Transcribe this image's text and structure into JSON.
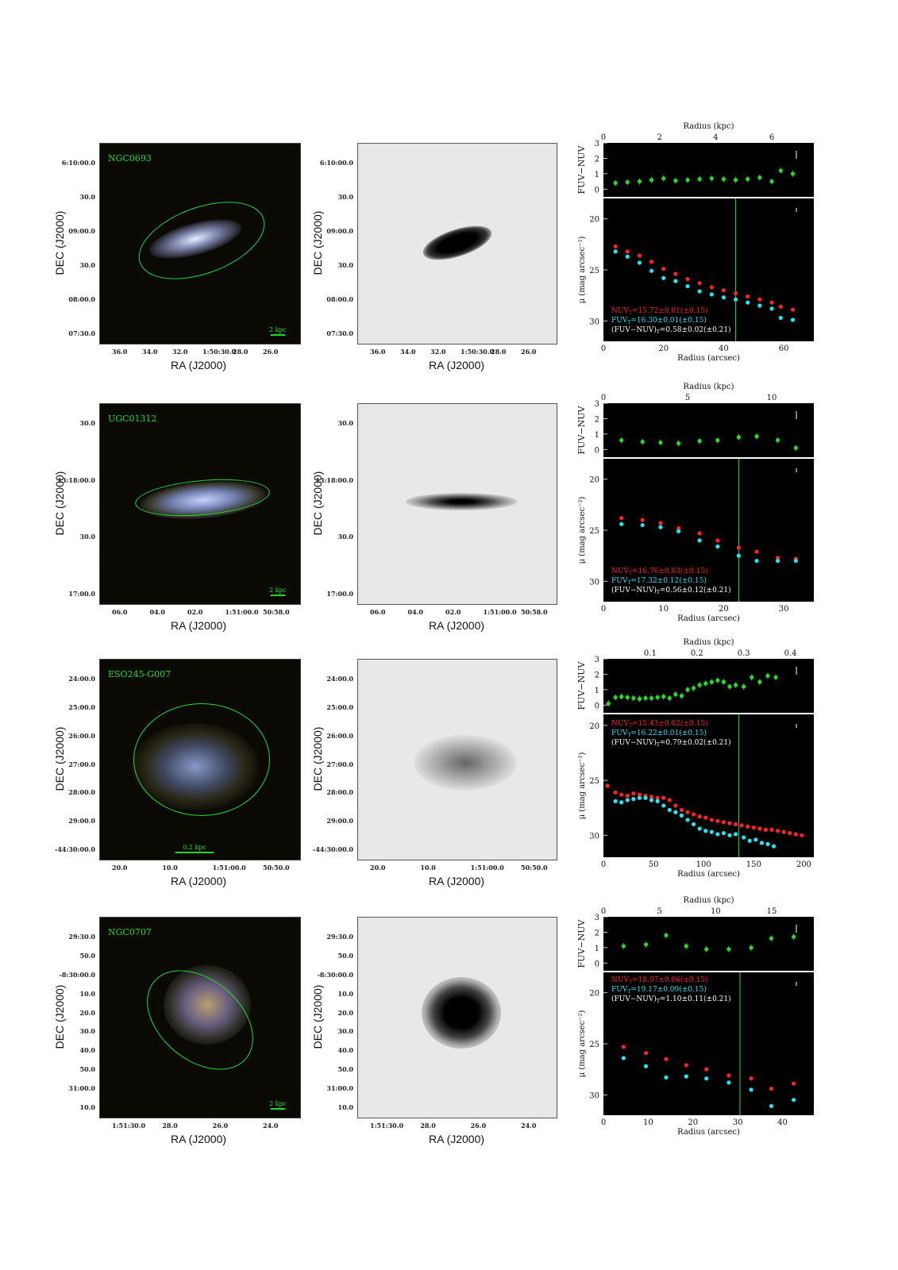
{
  "colors": {
    "ellipse": "#22dd33",
    "nuv": "#ff2222",
    "fuv": "#22e5f5",
    "color_pts": "#22dd22",
    "label_green": "#22dd22",
    "white": "#ffffff"
  },
  "common": {
    "ra_label": "RA (J2000)",
    "dec_label": "DEC (J2000)",
    "radius_kpc_label": "Radius (kpc)",
    "radius_arcsec_label": "Radius (arcsec)",
    "fuvnuv_label": "FUV−NUV",
    "mu_label": "μ (mag arcsec⁻²)"
  },
  "galaxies": [
    {
      "name": "NGC0693",
      "scalebar": "2 kpc",
      "dec_ticks": [
        "6:10:00.0",
        "30.0",
        "09:00.0",
        "30.0",
        "08:00.0",
        "07:30.0"
      ],
      "ra_ticks": [
        "36.0",
        "34.0",
        "32.0",
        "1:50:30.0",
        "28.0",
        "26.0"
      ],
      "mag_lines": {
        "nuv": "NUV",
        "nuv_val": "=15.72±0.01(±0.15)",
        "fuv": "FUV",
        "fuv_val": "=16.30±0.01(±0.15)",
        "col": "(FUV−NUV)",
        "col_val": "=0.58±0.02(±0.21)"
      },
      "chart_data": {
        "type": "scatter",
        "xlim": [
          0,
          70
        ],
        "kpc_ticks": [
          "0",
          "2",
          "4",
          "6"
        ],
        "x_ticks": [
          "0",
          "20",
          "40",
          "60"
        ],
        "mu_ylim": [
          32,
          18
        ],
        "mu_ticks": [
          "20",
          "25",
          "30"
        ],
        "color_ylim": [
          -0.5,
          3
        ],
        "color_ticks": [
          "0",
          "1",
          "2",
          "3"
        ],
        "vline": 44,
        "series": [
          {
            "name": "FUV−NUV",
            "x": [
              4,
              8,
              12,
              16,
              20,
              24,
              28,
              32,
              36,
              40,
              44,
              48,
              52,
              56,
              59,
              63
            ],
            "y": [
              0.4,
              0.45,
              0.5,
              0.6,
              0.7,
              0.55,
              0.6,
              0.65,
              0.7,
              0.65,
              0.6,
              0.65,
              0.75,
              0.5,
              1.2,
              1.0
            ]
          },
          {
            "name": "NUV",
            "x": [
              4,
              8,
              12,
              16,
              20,
              24,
              28,
              32,
              36,
              40,
              44,
              48,
              52,
              56,
              59,
              63
            ],
            "y": [
              22.7,
              23.2,
              23.6,
              24.2,
              24.9,
              25.4,
              25.9,
              26.3,
              26.7,
              27.0,
              27.3,
              27.6,
              27.9,
              28.2,
              28.6,
              28.9
            ]
          },
          {
            "name": "FUV",
            "x": [
              4,
              8,
              12,
              16,
              20,
              24,
              28,
              32,
              36,
              40,
              44,
              48,
              52,
              56,
              59,
              63
            ],
            "y": [
              23.2,
              23.7,
              24.3,
              25.1,
              25.8,
              26.1,
              26.6,
              27.1,
              27.4,
              27.7,
              27.9,
              28.2,
              28.5,
              28.8,
              29.7,
              29.9
            ]
          }
        ]
      }
    },
    {
      "name": "UGC01312",
      "scalebar": "2 kpc",
      "dec_ticks": [
        "30.0",
        "13:18:00.0",
        "30.0",
        "17:00.0"
      ],
      "ra_ticks": [
        "06.0",
        "04.0",
        "02.0",
        "1:51:00.0",
        "50:58.0"
      ],
      "mag_lines": {
        "nuv": "NUV",
        "nuv_val": "=16.76±0.03(±0.15)",
        "fuv": "FUV",
        "fuv_val": "=17.32±0.12(±0.15)",
        "col": "(FUV−NUV)",
        "col_val": "=0.56±0.12(±0.21)"
      },
      "chart_data": {
        "type": "scatter",
        "xlim": [
          0,
          35
        ],
        "kpc_ticks": [
          "0",
          "5",
          "10"
        ],
        "x_ticks": [
          "0",
          "10",
          "20",
          "30"
        ],
        "mu_ylim": [
          32,
          18
        ],
        "mu_ticks": [
          "20",
          "25",
          "30"
        ],
        "color_ylim": [
          -0.5,
          3
        ],
        "color_ticks": [
          "0",
          "1",
          "2",
          "3"
        ],
        "vline": 22.5,
        "series": [
          {
            "name": "FUV−NUV",
            "x": [
              3,
              6.5,
              9.5,
              12.5,
              16,
              19,
              22.5,
              25.5,
              29,
              32
            ],
            "y": [
              0.6,
              0.5,
              0.45,
              0.4,
              0.55,
              0.6,
              0.8,
              0.85,
              0.6,
              0.1
            ]
          },
          {
            "name": "NUV",
            "x": [
              3,
              6.5,
              9.5,
              12.5,
              16,
              19,
              22.5,
              25.5,
              29,
              32
            ],
            "y": [
              23.8,
              24.0,
              24.3,
              24.8,
              25.3,
              26.0,
              26.7,
              27.1,
              27.7,
              27.8
            ]
          },
          {
            "name": "FUV",
            "x": [
              3,
              6.5,
              9.5,
              12.5,
              16,
              19,
              22.5,
              25.5,
              29,
              32
            ],
            "y": [
              24.4,
              24.5,
              24.7,
              25.1,
              26.0,
              26.6,
              27.5,
              28.0,
              28.0,
              28.0
            ]
          }
        ]
      }
    },
    {
      "name": "ESO245-G007",
      "scalebar": "0.2 kpc",
      "dec_ticks": [
        "24:00.0",
        "25:00.0",
        "26:00.0",
        "27:00.0",
        "28:00.0",
        "29:00.0",
        "-44:30:00.0"
      ],
      "ra_ticks": [
        "20.0",
        "10.0",
        "1:51:00.0",
        "50:50.0"
      ],
      "mag_lines": {
        "nuv": "NUV",
        "nuv_val": "=15.43±0.02(±0.15)",
        "fuv": "FUV",
        "fuv_val": "=16.22±0.01(±0.15)",
        "col": "(FUV−NUV)",
        "col_val": "=0.79±0.02(±0.21)"
      },
      "chart_data": {
        "type": "scatter",
        "xlim": [
          0,
          210
        ],
        "kpc_ticks": [
          "0.1",
          "0.2",
          "0.3",
          "0.4"
        ],
        "x_ticks": [
          "0",
          "50",
          "100",
          "150",
          "200"
        ],
        "mu_ylim": [
          32,
          19
        ],
        "mu_ticks": [
          "20",
          "25",
          "30"
        ],
        "color_ylim": [
          -0.5,
          3
        ],
        "color_ticks": [
          "0",
          "1",
          "2",
          "3"
        ],
        "vline": 135,
        "series": [
          {
            "name": "FUV−NUV",
            "x": [
              5,
              12,
              18,
              24,
              30,
              36,
              42,
              48,
              54,
              60,
              66,
              72,
              78,
              84,
              90,
              96,
              102,
              108,
              114,
              120,
              126,
              132,
              140,
              148,
              156,
              164,
              172
            ],
            "y": [
              0.1,
              0.5,
              0.55,
              0.5,
              0.45,
              0.4,
              0.45,
              0.45,
              0.5,
              0.55,
              0.45,
              0.7,
              0.6,
              1.0,
              1.1,
              1.3,
              1.4,
              1.5,
              1.6,
              1.5,
              1.2,
              1.3,
              1.2,
              1.8,
              1.5,
              1.9,
              1.8
            ]
          },
          {
            "name": "NUV",
            "x": [
              4,
              12,
              18,
              24,
              30,
              36,
              42,
              48,
              54,
              60,
              66,
              72,
              78,
              84,
              90,
              96,
              102,
              108,
              114,
              120,
              126,
              132,
              138,
              144,
              150,
              156,
              162,
              168,
              174,
              180,
              186,
              192,
              198
            ],
            "y": [
              25.5,
              26.1,
              26.3,
              26.4,
              26.2,
              26.3,
              26.4,
              26.5,
              26.6,
              26.6,
              26.8,
              27.3,
              27.7,
              27.9,
              28.1,
              28.3,
              28.4,
              28.6,
              28.7,
              28.8,
              28.9,
              29.0,
              29.1,
              29.2,
              29.3,
              29.4,
              29.5,
              29.5,
              29.6,
              29.7,
              29.8,
              29.9,
              30.0
            ]
          },
          {
            "name": "FUV",
            "x": [
              12,
              18,
              24,
              30,
              36,
              42,
              48,
              54,
              60,
              66,
              72,
              78,
              84,
              90,
              96,
              102,
              108,
              114,
              120,
              126,
              132,
              140,
              146,
              152,
              158,
              164,
              170
            ],
            "y": [
              26.9,
              27.0,
              26.8,
              26.7,
              26.6,
              26.6,
              26.8,
              26.9,
              27.3,
              27.7,
              27.9,
              28.2,
              28.6,
              29.0,
              29.4,
              29.6,
              29.7,
              29.9,
              29.8,
              30.0,
              29.9,
              30.2,
              30.5,
              30.4,
              30.7,
              30.8,
              31.0
            ]
          }
        ]
      }
    },
    {
      "name": "NGC0707",
      "scalebar": "2 kpc",
      "dec_ticks": [
        "29:30.0",
        "50.0",
        "-8:30:00.0",
        "10.0",
        "20.0",
        "30.0",
        "40.0",
        "50.0",
        "31:00.0",
        "10.0"
      ],
      "ra_ticks": [
        "1:51:30.0",
        "28.0",
        "26.0",
        "24.0"
      ],
      "mag_lines": {
        "nuv": "NUV",
        "nuv_val": "=18.07±0.06(±0.15)",
        "fuv": "FUV",
        "fuv_val": "=19.17±0.09(±0.15)",
        "col": "(FUV−NUV)",
        "col_val": "=1.10±0.11(±0.21)"
      },
      "chart_data": {
        "type": "scatter",
        "xlim": [
          0,
          47
        ],
        "kpc_ticks": [
          "0",
          "5",
          "10",
          "15"
        ],
        "x_ticks": [
          "0",
          "10",
          "20",
          "30",
          "40"
        ],
        "mu_ylim": [
          32,
          18
        ],
        "mu_ticks": [
          "20",
          "25",
          "30"
        ],
        "color_ylim": [
          -0.5,
          3
        ],
        "color_ticks": [
          "0",
          "1",
          "2",
          "3"
        ],
        "vline": 30.5,
        "series": [
          {
            "name": "FUV−NUV",
            "x": [
              4.5,
              9.5,
              14,
              18.5,
              23,
              28,
              33,
              37.5,
              42.5
            ],
            "y": [
              1.1,
              1.2,
              1.8,
              1.1,
              0.9,
              0.9,
              1.0,
              1.6,
              1.7
            ]
          },
          {
            "name": "NUV",
            "x": [
              4.5,
              9.5,
              14,
              18.5,
              23,
              28,
              33,
              37.5,
              42.5
            ],
            "y": [
              25.3,
              25.9,
              26.5,
              27.1,
              27.5,
              28.1,
              28.4,
              29.4,
              28.9
            ]
          },
          {
            "name": "FUV",
            "x": [
              4.5,
              9.5,
              14,
              18.5,
              23,
              28,
              33,
              37.5,
              42.5
            ],
            "y": [
              26.4,
              27.2,
              28.3,
              28.2,
              28.4,
              28.8,
              29.5,
              31.1,
              30.5
            ]
          }
        ]
      }
    }
  ]
}
